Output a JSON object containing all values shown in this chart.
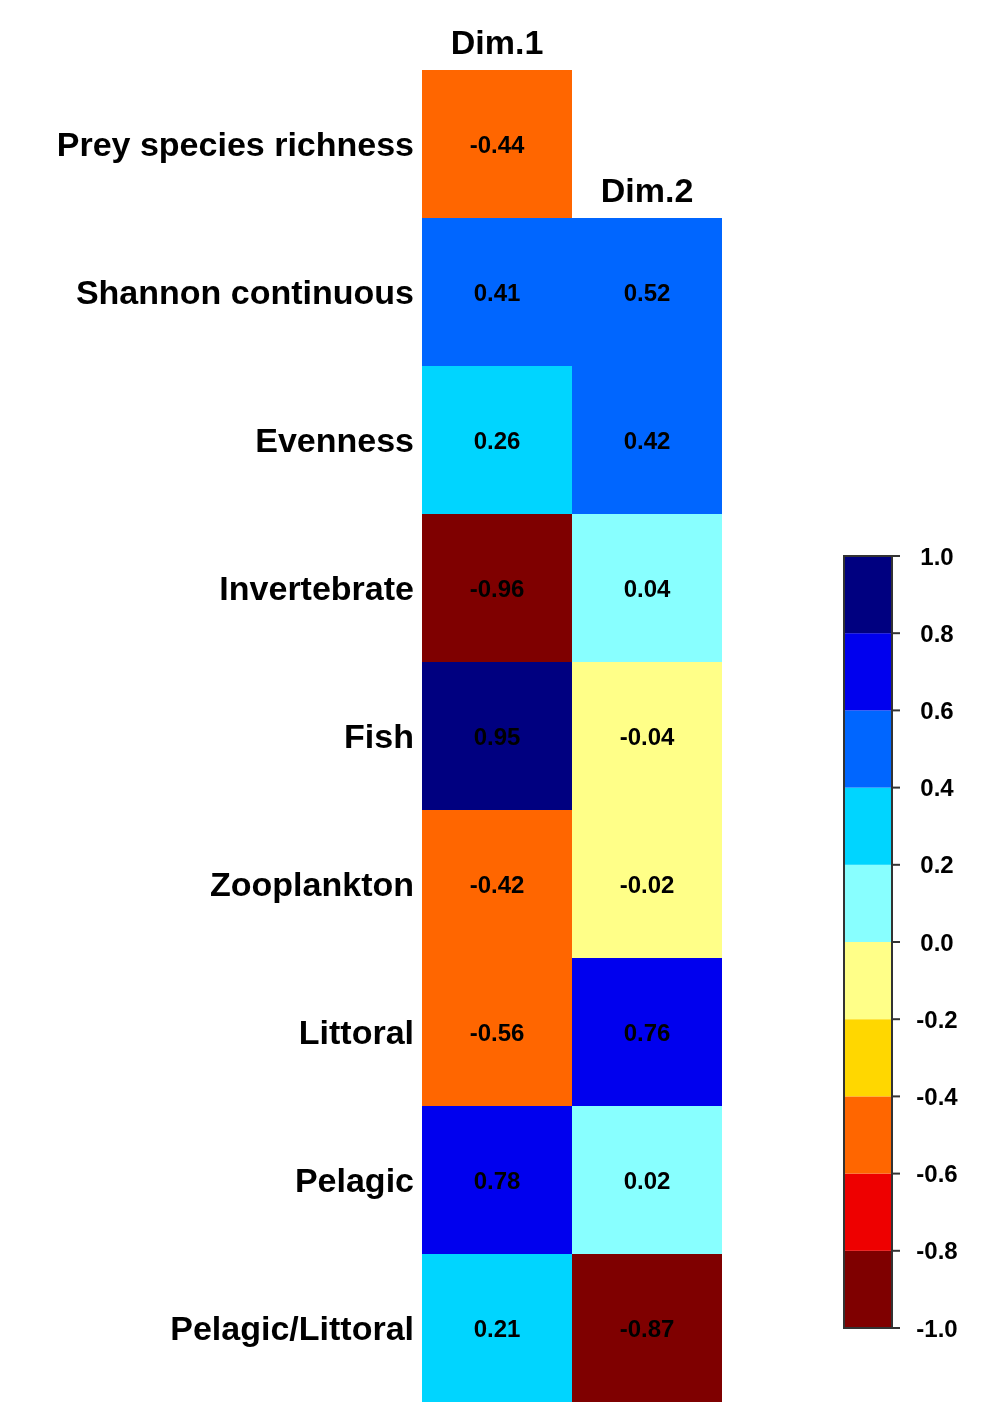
{
  "chart_data": {
    "type": "heatmap",
    "categories": [
      "Dim.1",
      "Dim.2"
    ],
    "y_categories": [
      "Prey species richness",
      "Shannon continuous",
      "Evenness",
      "Invertebrate",
      "Fish",
      "Zooplankton",
      "Littoral",
      "Pelagic",
      "Pelagic/Littoral"
    ],
    "cells": [
      [
        -0.44,
        null
      ],
      [
        0.41,
        0.52
      ],
      [
        0.26,
        0.42
      ],
      [
        -0.96,
        0.04
      ],
      [
        0.95,
        -0.04
      ],
      [
        -0.42,
        -0.02
      ],
      [
        -0.56,
        0.76
      ],
      [
        0.78,
        0.02
      ],
      [
        0.21,
        -0.87
      ]
    ],
    "data_labels": true,
    "clim": [
      -1,
      1
    ],
    "cticks": [
      {
        "value": 1,
        "label": "1.0"
      },
      {
        "value": 0.8,
        "label": "0.8"
      },
      {
        "value": 0.6,
        "label": "0.6"
      },
      {
        "value": 0.4,
        "label": "0.4"
      },
      {
        "value": 0.2,
        "label": "0.2"
      },
      {
        "value": 0,
        "label": "0.0"
      },
      {
        "value": -0.2,
        "label": "-0.2"
      },
      {
        "value": -0.4,
        "label": "-0.4"
      },
      {
        "value": -0.6,
        "label": "-0.6"
      },
      {
        "value": -0.8,
        "label": "-0.8"
      },
      {
        "value": -1,
        "label": "-1.0"
      }
    ]
  }
}
